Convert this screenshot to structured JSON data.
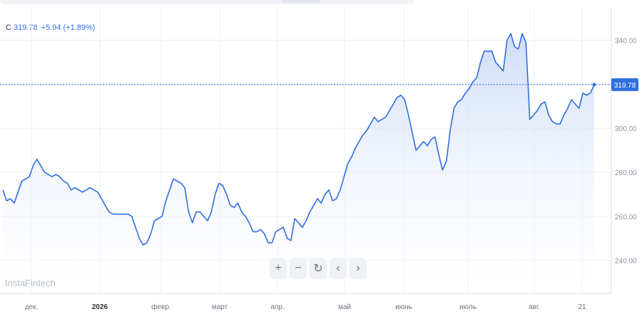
{
  "ticker": {
    "symbol": "C",
    "price": "319.78",
    "change": "+5.94 (+1.89%)"
  },
  "watermark": "InstaFintech",
  "controls": {
    "zoom_in": "+",
    "zoom_out": "−",
    "reset": "↻",
    "prev": "‹",
    "next": "›"
  },
  "colors": {
    "line": "#2f6fe0",
    "fill_top": "#c9d8f7",
    "fill_bottom": "#ffffff",
    "grid": "#eceff3",
    "label_bg": "#2f6fe0"
  },
  "chart_data": {
    "type": "area",
    "title": "",
    "xlabel": "",
    "ylabel": "",
    "ylim": [
      225,
      355
    ],
    "grid": true,
    "last_value_label": "319.78",
    "y_ticks": [
      240,
      260,
      280,
      300,
      320,
      340
    ],
    "y_tick_labels": [
      "240.00",
      "260.00",
      "280.00",
      "300.00",
      "320.00",
      "340.00"
    ],
    "x_labels": [
      "дек.",
      "2026",
      "февр.",
      "март",
      "апр.",
      "май",
      "июнь",
      "июль",
      "авг.",
      "21"
    ],
    "series": [
      {
        "values": [
          272,
          267,
          268,
          266,
          271,
          276,
          277,
          278,
          283,
          286,
          283,
          280,
          279,
          278,
          279,
          278,
          276,
          275,
          272,
          273,
          272,
          271,
          272,
          273,
          272,
          271,
          268,
          265,
          262,
          261,
          261,
          261,
          261,
          261,
          260,
          255,
          250,
          247,
          248,
          252,
          258,
          259,
          260,
          267,
          272,
          277,
          276,
          275,
          273,
          262,
          257,
          262,
          262,
          260,
          258,
          262,
          270,
          275,
          274,
          270,
          265,
          264,
          266,
          262,
          260,
          257,
          253,
          253,
          254,
          252,
          248,
          248,
          253,
          254,
          255,
          250,
          249,
          259,
          257,
          255,
          258,
          262,
          265,
          268,
          266,
          270,
          272,
          267,
          268,
          272,
          278,
          284,
          287,
          291,
          294,
          297,
          299,
          302,
          305,
          303,
          304,
          305,
          308,
          311,
          314,
          315,
          313,
          306,
          298,
          290,
          292,
          294,
          292,
          295,
          296,
          288,
          281,
          285,
          299,
          309,
          312,
          313,
          316,
          318,
          321,
          323,
          330,
          335,
          335,
          335,
          330,
          328,
          326,
          340,
          343,
          337,
          336,
          343,
          339,
          304,
          306,
          308,
          311,
          312,
          306,
          303,
          302,
          302,
          306,
          309,
          313,
          311,
          309,
          316,
          315,
          316,
          319.78
        ]
      }
    ]
  }
}
